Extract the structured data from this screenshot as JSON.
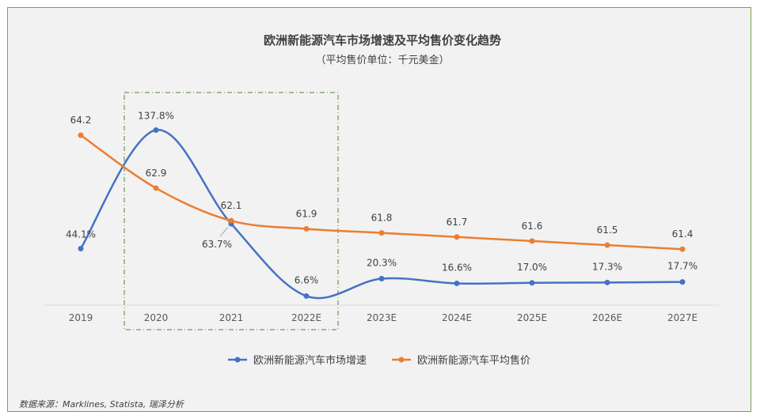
{
  "chart_data": {
    "type": "line",
    "title": "欧洲新能源汽车市场增速及平均售价变化趋势",
    "subtitle": "（平均售价单位：千元美金）",
    "categories": [
      "2019",
      "2020",
      "2021",
      "2022E",
      "2023E",
      "2024E",
      "2025E",
      "2026E",
      "2027E"
    ],
    "series": [
      {
        "name": "欧洲新能源汽车市场增速",
        "color": "#4472c4",
        "values": [
          44.1,
          137.8,
          63.7,
          6.6,
          20.3,
          16.6,
          17.0,
          17.3,
          17.7
        ],
        "labels": [
          "44.1%",
          "137.8%",
          "63.7%",
          "6.6%",
          "20.3%",
          "16.6%",
          "17.0%",
          "17.3%",
          "17.7%"
        ]
      },
      {
        "name": "欧洲新能源汽车平均售价",
        "color": "#ed7d31",
        "values": [
          64.2,
          62.9,
          62.1,
          61.9,
          61.8,
          61.7,
          61.6,
          61.5,
          61.4
        ],
        "labels": [
          "64.2",
          "62.9",
          "62.1",
          "61.9",
          "61.8",
          "61.7",
          "61.6",
          "61.5",
          "61.4"
        ]
      }
    ],
    "smooth": true,
    "grid": false,
    "legend": "bottom",
    "highlight": {
      "from": "2020",
      "to": "2022E",
      "style": "dash-dot box",
      "color": "#548235"
    }
  },
  "source": "数据来源：Marklines, Statista, 瑞泽分析"
}
